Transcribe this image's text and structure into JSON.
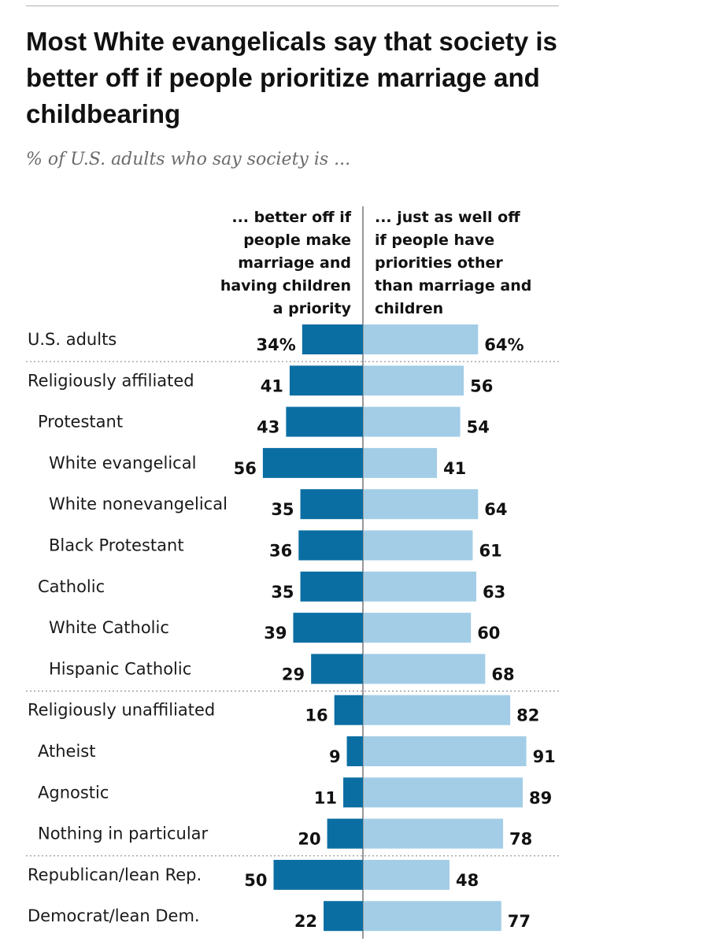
{
  "title": "Most White evangelicals say that society is better off if people prioritize marriage and childbearing",
  "subtitle": "% of U.S. adults who say society is ...",
  "colors": {
    "better_off": "#0b6ea3",
    "just_as_well": "#a3cde6",
    "axis": "#333333",
    "separator": "#999999"
  },
  "chart_data": {
    "type": "bar",
    "orientation": "diverging-horizontal",
    "title": "Most White evangelicals say that society is better off if people prioritize marriage and childbearing",
    "subtitle": "% of U.S. adults who say society is ...",
    "series": [
      {
        "name": "... better off if people make marriage and having children a priority",
        "values": [
          34,
          41,
          43,
          56,
          35,
          36,
          35,
          39,
          29,
          16,
          9,
          11,
          20,
          50,
          22
        ]
      },
      {
        "name": "... just as well off if people have priorities other than marriage and children",
        "values": [
          64,
          56,
          54,
          41,
          64,
          61,
          63,
          60,
          68,
          82,
          91,
          89,
          78,
          48,
          77
        ]
      }
    ],
    "categories": [
      "U.S. adults",
      "Religiously affiliated",
      "Protestant",
      "White evangelical",
      "White nonevangelical",
      "Black Protestant",
      "Catholic",
      "White Catholic",
      "Hispanic Catholic",
      "Religiously unaffiliated",
      "Atheist",
      "Agnostic",
      "Nothing in particular",
      "Republican/lean Rep.",
      "Democrat/lean Dem."
    ],
    "category_levels": [
      0,
      0,
      1,
      2,
      2,
      2,
      1,
      2,
      2,
      0,
      1,
      1,
      1,
      0,
      0
    ],
    "value_labels_left": [
      "34%",
      "41",
      "43",
      "56",
      "35",
      "36",
      "35",
      "39",
      "29",
      "16",
      "9",
      "11",
      "20",
      "50",
      "22"
    ],
    "value_labels_right": [
      "64%",
      "56",
      "54",
      "41",
      "64",
      "61",
      "63",
      "60",
      "68",
      "82",
      "91",
      "89",
      "78",
      "48",
      "77"
    ],
    "group_separators_after": [
      "U.S. adults",
      "Hispanic Catholic",
      "Nothing in particular"
    ],
    "unit": "%"
  },
  "column_headers": {
    "left": "... better off if\npeople make\nmarriage and\nhaving children\na priority",
    "right": "... just as well off\nif people have\npriorities other\nthan marriage and\nchildren"
  }
}
